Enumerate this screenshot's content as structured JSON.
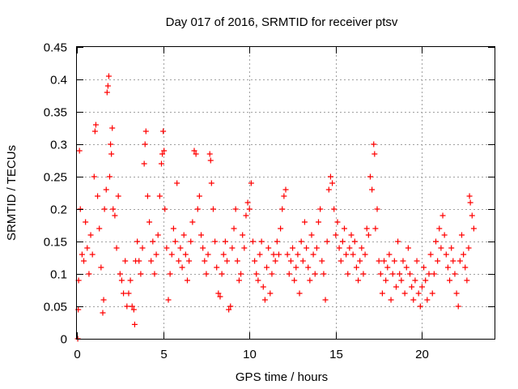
{
  "chart_data": {
    "type": "scatter",
    "title": "Day 017 of 2016, SRMTID for receiver ptsv",
    "xlabel": "GPS time / hours",
    "ylabel": "SRMTID / TECUs",
    "xlim": [
      0,
      24.2
    ],
    "ylim": [
      0,
      0.45
    ],
    "xticks": [
      0,
      5,
      10,
      15,
      20
    ],
    "xtick_labels": [
      "0",
      "5",
      "10",
      "15",
      "20"
    ],
    "yticks": [
      0,
      0.05,
      0.1,
      0.15,
      0.2,
      0.25,
      0.3,
      0.35,
      0.4,
      0.45
    ],
    "ytick_labels": [
      "0",
      "0.05",
      "0.1",
      "0.15",
      "0.2",
      "0.25",
      "0.3",
      "0.35",
      "0.4",
      "0.45"
    ],
    "grid": true,
    "marker": "+",
    "color": "#ff0000",
    "series": [
      {
        "name": "SRMTID",
        "points": [
          [
            0.05,
            0.0
          ],
          [
            0.08,
            0.045
          ],
          [
            0.1,
            0.09
          ],
          [
            0.15,
            0.29
          ],
          [
            0.2,
            0.2
          ],
          [
            0.3,
            0.13
          ],
          [
            0.4,
            0.12
          ],
          [
            0.5,
            0.18
          ],
          [
            0.6,
            0.14
          ],
          [
            0.7,
            0.1
          ],
          [
            0.8,
            0.16
          ],
          [
            0.9,
            0.13
          ],
          [
            1.0,
            0.25
          ],
          [
            1.05,
            0.32
          ],
          [
            1.1,
            0.33
          ],
          [
            1.2,
            0.22
          ],
          [
            1.3,
            0.17
          ],
          [
            1.4,
            0.11
          ],
          [
            1.5,
            0.04
          ],
          [
            1.55,
            0.06
          ],
          [
            1.6,
            0.2
          ],
          [
            1.7,
            0.23
          ],
          [
            1.75,
            0.38
          ],
          [
            1.8,
            0.39
          ],
          [
            1.85,
            0.405
          ],
          [
            1.9,
            0.25
          ],
          [
            1.95,
            0.3
          ],
          [
            2.0,
            0.285
          ],
          [
            2.05,
            0.325
          ],
          [
            2.1,
            0.2
          ],
          [
            2.2,
            0.19
          ],
          [
            2.3,
            0.14
          ],
          [
            2.4,
            0.22
          ],
          [
            2.5,
            0.1
          ],
          [
            2.6,
            0.09
          ],
          [
            2.7,
            0.07
          ],
          [
            2.8,
            0.12
          ],
          [
            2.9,
            0.05
          ],
          [
            3.0,
            0.07
          ],
          [
            3.1,
            0.09
          ],
          [
            3.2,
            0.05
          ],
          [
            3.3,
            0.045
          ],
          [
            3.35,
            0.022
          ],
          [
            3.4,
            0.12
          ],
          [
            3.5,
            0.15
          ],
          [
            3.6,
            0.12
          ],
          [
            3.7,
            0.1
          ],
          [
            3.8,
            0.14
          ],
          [
            3.9,
            0.27
          ],
          [
            3.95,
            0.3
          ],
          [
            4.0,
            0.32
          ],
          [
            4.1,
            0.22
          ],
          [
            4.2,
            0.18
          ],
          [
            4.3,
            0.12
          ],
          [
            4.4,
            0.15
          ],
          [
            4.5,
            0.1
          ],
          [
            4.6,
            0.13
          ],
          [
            4.7,
            0.16
          ],
          [
            4.8,
            0.22
          ],
          [
            4.9,
            0.27
          ],
          [
            4.95,
            0.285
          ],
          [
            5.0,
            0.32
          ],
          [
            5.05,
            0.29
          ],
          [
            5.1,
            0.2
          ],
          [
            5.2,
            0.14
          ],
          [
            5.3,
            0.06
          ],
          [
            5.4,
            0.1
          ],
          [
            5.5,
            0.13
          ],
          [
            5.6,
            0.17
          ],
          [
            5.7,
            0.15
          ],
          [
            5.8,
            0.24
          ],
          [
            5.9,
            0.12
          ],
          [
            6.0,
            0.14
          ],
          [
            6.1,
            0.11
          ],
          [
            6.2,
            0.16
          ],
          [
            6.3,
            0.13
          ],
          [
            6.4,
            0.09
          ],
          [
            6.5,
            0.12
          ],
          [
            6.6,
            0.15
          ],
          [
            6.7,
            0.18
          ],
          [
            6.8,
            0.29
          ],
          [
            6.9,
            0.285
          ],
          [
            7.0,
            0.2
          ],
          [
            7.1,
            0.22
          ],
          [
            7.2,
            0.16
          ],
          [
            7.3,
            0.14
          ],
          [
            7.4,
            0.12
          ],
          [
            7.5,
            0.1
          ],
          [
            7.6,
            0.13
          ],
          [
            7.7,
            0.285
          ],
          [
            7.75,
            0.275
          ],
          [
            7.8,
            0.24
          ],
          [
            7.9,
            0.2
          ],
          [
            8.0,
            0.15
          ],
          [
            8.1,
            0.11
          ],
          [
            8.2,
            0.07
          ],
          [
            8.3,
            0.065
          ],
          [
            8.4,
            0.1
          ],
          [
            8.5,
            0.13
          ],
          [
            8.6,
            0.15
          ],
          [
            8.7,
            0.12
          ],
          [
            8.8,
            0.045
          ],
          [
            8.9,
            0.05
          ],
          [
            9.0,
            0.14
          ],
          [
            9.1,
            0.17
          ],
          [
            9.2,
            0.2
          ],
          [
            9.3,
            0.12
          ],
          [
            9.4,
            0.09
          ],
          [
            9.5,
            0.1
          ],
          [
            9.6,
            0.16
          ],
          [
            9.7,
            0.14
          ],
          [
            9.8,
            0.19
          ],
          [
            9.9,
            0.21
          ],
          [
            10.0,
            0.2
          ],
          [
            10.1,
            0.24
          ],
          [
            10.2,
            0.15
          ],
          [
            10.3,
            0.12
          ],
          [
            10.4,
            0.1
          ],
          [
            10.5,
            0.09
          ],
          [
            10.6,
            0.13
          ],
          [
            10.7,
            0.15
          ],
          [
            10.8,
            0.08
          ],
          [
            10.9,
            0.06
          ],
          [
            11.0,
            0.11
          ],
          [
            11.1,
            0.14
          ],
          [
            11.2,
            0.07
          ],
          [
            11.3,
            0.1
          ],
          [
            11.4,
            0.13
          ],
          [
            11.5,
            0.12
          ],
          [
            11.6,
            0.15
          ],
          [
            11.7,
            0.13
          ],
          [
            11.8,
            0.17
          ],
          [
            11.9,
            0.2
          ],
          [
            12.0,
            0.22
          ],
          [
            12.1,
            0.23
          ],
          [
            12.2,
            0.13
          ],
          [
            12.3,
            0.1
          ],
          [
            12.4,
            0.12
          ],
          [
            12.5,
            0.14
          ],
          [
            12.6,
            0.09
          ],
          [
            12.7,
            0.11
          ],
          [
            12.8,
            0.13
          ],
          [
            12.9,
            0.07
          ],
          [
            13.0,
            0.15
          ],
          [
            13.1,
            0.12
          ],
          [
            13.2,
            0.18
          ],
          [
            13.3,
            0.14
          ],
          [
            13.4,
            0.11
          ],
          [
            13.5,
            0.09
          ],
          [
            13.6,
            0.16
          ],
          [
            13.7,
            0.13
          ],
          [
            13.8,
            0.1
          ],
          [
            13.9,
            0.14
          ],
          [
            14.0,
            0.18
          ],
          [
            14.1,
            0.2
          ],
          [
            14.2,
            0.12
          ],
          [
            14.3,
            0.1
          ],
          [
            14.4,
            0.06
          ],
          [
            14.5,
            0.15
          ],
          [
            14.6,
            0.23
          ],
          [
            14.7,
            0.25
          ],
          [
            14.8,
            0.24
          ],
          [
            14.9,
            0.2
          ],
          [
            15.0,
            0.16
          ],
          [
            15.1,
            0.18
          ],
          [
            15.2,
            0.14
          ],
          [
            15.3,
            0.12
          ],
          [
            15.4,
            0.15
          ],
          [
            15.5,
            0.17
          ],
          [
            15.6,
            0.13
          ],
          [
            15.7,
            0.1
          ],
          [
            15.8,
            0.14
          ],
          [
            15.9,
            0.16
          ],
          [
            16.0,
            0.13
          ],
          [
            16.1,
            0.15
          ],
          [
            16.2,
            0.11
          ],
          [
            16.3,
            0.09
          ],
          [
            16.4,
            0.12
          ],
          [
            16.5,
            0.14
          ],
          [
            16.6,
            0.1
          ],
          [
            16.7,
            0.13
          ],
          [
            16.8,
            0.17
          ],
          [
            16.9,
            0.16
          ],
          [
            17.0,
            0.25
          ],
          [
            17.1,
            0.23
          ],
          [
            17.2,
            0.3
          ],
          [
            17.25,
            0.285
          ],
          [
            17.3,
            0.17
          ],
          [
            17.4,
            0.2
          ],
          [
            17.5,
            0.12
          ],
          [
            17.6,
            0.1
          ],
          [
            17.7,
            0.07
          ],
          [
            17.8,
            0.12
          ],
          [
            17.9,
            0.09
          ],
          [
            18.0,
            0.11
          ],
          [
            18.1,
            0.13
          ],
          [
            18.2,
            0.06
          ],
          [
            18.3,
            0.1
          ],
          [
            18.4,
            0.12
          ],
          [
            18.5,
            0.08
          ],
          [
            18.6,
            0.15
          ],
          [
            18.7,
            0.1
          ],
          [
            18.8,
            0.09
          ],
          [
            18.9,
            0.12
          ],
          [
            19.0,
            0.07
          ],
          [
            19.1,
            0.11
          ],
          [
            19.2,
            0.14
          ],
          [
            19.3,
            0.1
          ],
          [
            19.4,
            0.08
          ],
          [
            19.5,
            0.06
          ],
          [
            19.6,
            0.09
          ],
          [
            19.7,
            0.12
          ],
          [
            19.8,
            0.07
          ],
          [
            19.9,
            0.05
          ],
          [
            20.0,
            0.08
          ],
          [
            20.1,
            0.11
          ],
          [
            20.2,
            0.09
          ],
          [
            20.3,
            0.06
          ],
          [
            20.4,
            0.1
          ],
          [
            20.5,
            0.13
          ],
          [
            20.6,
            0.07
          ],
          [
            20.7,
            0.1
          ],
          [
            20.8,
            0.15
          ],
          [
            20.9,
            0.12
          ],
          [
            21.0,
            0.17
          ],
          [
            21.1,
            0.14
          ],
          [
            21.2,
            0.19
          ],
          [
            21.3,
            0.16
          ],
          [
            21.4,
            0.13
          ],
          [
            21.5,
            0.11
          ],
          [
            21.6,
            0.09
          ],
          [
            21.7,
            0.14
          ],
          [
            21.8,
            0.12
          ],
          [
            21.9,
            0.1
          ],
          [
            22.0,
            0.07
          ],
          [
            22.1,
            0.05
          ],
          [
            22.2,
            0.12
          ],
          [
            22.3,
            0.16
          ],
          [
            22.4,
            0.13
          ],
          [
            22.5,
            0.11
          ],
          [
            22.6,
            0.09
          ],
          [
            22.7,
            0.14
          ],
          [
            22.75,
            0.22
          ],
          [
            22.8,
            0.21
          ],
          [
            22.9,
            0.19
          ],
          [
            23.0,
            0.17
          ]
        ]
      }
    ]
  }
}
